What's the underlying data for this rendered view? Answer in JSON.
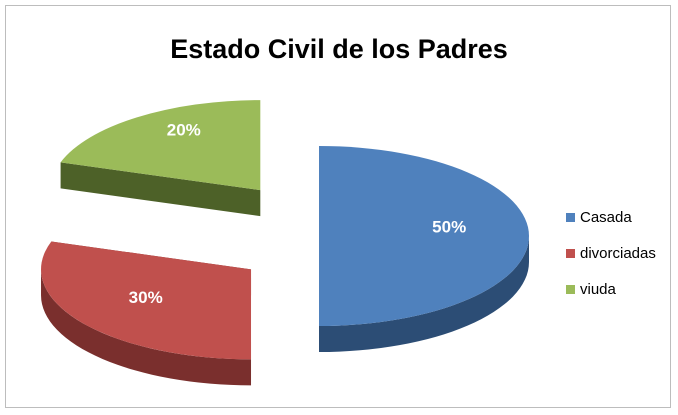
{
  "chart_data": {
    "type": "pie",
    "title": "Estado Civil de los Padres",
    "legend_position": "right",
    "slices": [
      {
        "label": "Casada",
        "value": 50,
        "data_label": "50%",
        "color": "#4f81bd",
        "side_color": "#2c4d75",
        "exploded": false
      },
      {
        "label": "divorciadas",
        "value": 30,
        "data_label": "30%",
        "color": "#c0504d",
        "side_color": "#7a2f2d",
        "exploded": true
      },
      {
        "label": "viuda",
        "value": 20,
        "data_label": "20%",
        "color": "#9bbb59",
        "side_color": "#4d6128",
        "exploded": true
      }
    ]
  }
}
